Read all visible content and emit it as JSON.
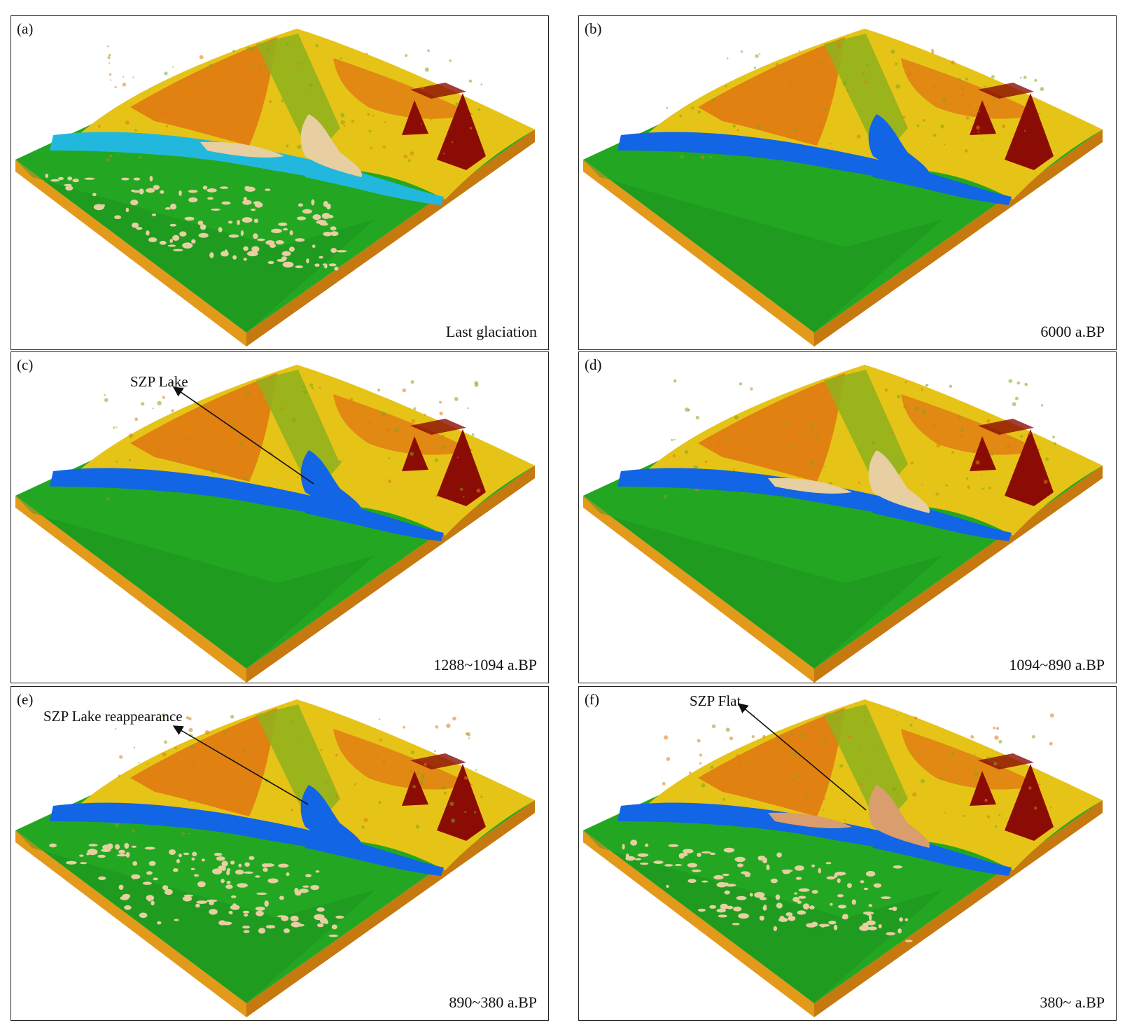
{
  "colors": {
    "plain_green": "#23a722",
    "plain_green_dark": "#1a8a1c",
    "hill_yellow": "#e5c417",
    "hill_orange": "#e07a12",
    "peak_red": "#8b0c05",
    "water_light": "#22b8de",
    "water_blue": "#1265e4",
    "sand": "#e7cfa1",
    "flat_brown": "#d99d6e",
    "block_side": "#e39a1b",
    "block_side_dark": "#c6790f"
  },
  "panels": [
    {
      "label": "(a)",
      "period": "Last glaciation",
      "water": "light",
      "sand_west": true,
      "lake": "sand",
      "annotation": ""
    },
    {
      "label": "(b)",
      "period": "6000 a.BP",
      "water": "blue",
      "sand_west": false,
      "lake": "water",
      "annotation": ""
    },
    {
      "label": "(c)",
      "period": "1288~1094 a.BP",
      "water": "blue",
      "sand_west": false,
      "lake": "water",
      "annotation": "SZP Lake"
    },
    {
      "label": "(d)",
      "period": "1094~890 a.BP",
      "water": "blue",
      "sand_west": false,
      "lake": "sand",
      "annotation": ""
    },
    {
      "label": "(e)",
      "period": "890~380 a.BP",
      "water": "blue",
      "sand_west": true,
      "lake": "water",
      "annotation": "SZP Lake reappearance"
    },
    {
      "label": "(f)",
      "period": "380~ a.BP",
      "water": "blue",
      "sand_west": true,
      "lake": "flat",
      "annotation": "SZP Flat"
    }
  ]
}
